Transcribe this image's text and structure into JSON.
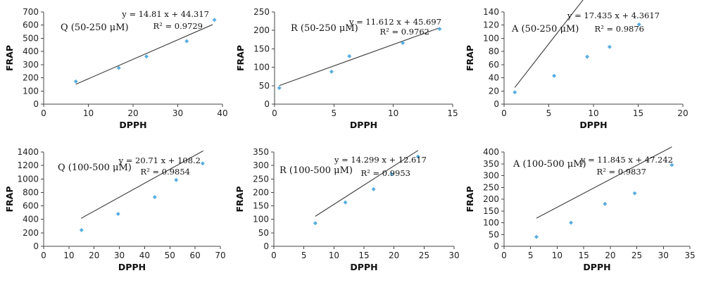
{
  "chart_data": [
    {
      "type": "scatter",
      "label": "Q (50-250 μM)",
      "xlabel": "DPPH",
      "ylabel": "FRAP",
      "xlim": [
        0,
        40
      ],
      "ylim": [
        0,
        700
      ],
      "xticks": [
        0,
        10,
        20,
        30,
        40
      ],
      "yticks": [
        0,
        100,
        200,
        300,
        400,
        500,
        600,
        700
      ],
      "x": [
        7.2,
        16.8,
        23.0,
        32.0,
        38.2
      ],
      "y": [
        172,
        275,
        362,
        478,
        640
      ],
      "trendline": {
        "slope": 14.81,
        "intercept": 44.317,
        "x_range": [
          7.2,
          37.8
        ]
      },
      "equation": "y = 14.81 x + 44.317",
      "r2": "R² = 0.9729"
    },
    {
      "type": "scatter",
      "label": "R (50-250 μM)",
      "xlabel": "DPPH",
      "ylabel": "FRAP",
      "xlim": [
        0,
        15
      ],
      "ylim": [
        0,
        250
      ],
      "xticks": [
        0,
        5,
        10,
        15
      ],
      "yticks": [
        0,
        50,
        100,
        150,
        200,
        250
      ],
      "x": [
        0.4,
        4.8,
        6.3,
        10.8,
        13.9
      ],
      "y": [
        44,
        88,
        130,
        166,
        204
      ],
      "trendline": {
        "slope": 11.612,
        "intercept": 45.697,
        "x_range": [
          0.4,
          13.9
        ]
      },
      "equation": "y = 11.612 x + 45.697",
      "r2": "R² = 0.9762"
    },
    {
      "type": "scatter",
      "label": "A (50-250 μM)",
      "xlabel": "DPPH",
      "ylabel": "FRAP",
      "xlim": [
        0,
        20
      ],
      "ylim": [
        0,
        140
      ],
      "xticks": [
        0,
        5,
        10,
        15,
        20
      ],
      "yticks": [
        0,
        20,
        40,
        60,
        80,
        100,
        120,
        140
      ],
      "x": [
        1.2,
        5.6,
        9.3,
        11.8,
        15.1
      ],
      "y": [
        18,
        43,
        72,
        87,
        121
      ],
      "trendline": {
        "slope": 17.435,
        "intercept": 4.3617,
        "x_range": [
          1.2,
          15.1
        ]
      },
      "equation": "y = 17.435 x + 4.3617",
      "r2": "R² = 0.9876"
    },
    {
      "type": "scatter",
      "label": "Q (100-500 μM)",
      "xlabel": "DPPH",
      "ylabel": "FRAP",
      "xlim": [
        0,
        70
      ],
      "ylim": [
        0,
        1400
      ],
      "xticks": [
        0,
        10,
        20,
        30,
        40,
        50,
        60,
        70
      ],
      "yticks": [
        0,
        200,
        400,
        600,
        800,
        1000,
        1200,
        1400
      ],
      "x": [
        15.0,
        29.5,
        44.0,
        52.5,
        63.0
      ],
      "y": [
        240,
        480,
        730,
        985,
        1230
      ],
      "trendline": {
        "slope": 20.71,
        "intercept": 108.2,
        "x_range": [
          14.8,
          63.2
        ]
      },
      "equation": "y = 20.71 x + 108.2",
      "r2": "R² = 0.9854"
    },
    {
      "type": "scatter",
      "label": "R (100-500 μM)",
      "xlabel": "DPPH",
      "ylabel": "FRAP",
      "xlim": [
        0,
        30
      ],
      "ylim": [
        0,
        350
      ],
      "xticks": [
        0,
        5,
        10,
        15,
        20,
        25,
        30
      ],
      "yticks": [
        0,
        50,
        100,
        150,
        200,
        250,
        300,
        350
      ],
      "x": [
        6.9,
        11.9,
        16.6,
        19.6,
        24.0
      ],
      "y": [
        86,
        163,
        212,
        268,
        333
      ],
      "trendline": {
        "slope": 14.299,
        "intercept": 12.617,
        "x_range": [
          6.9,
          24.0
        ]
      },
      "equation": "y = 14.299 x + 12.617",
      "r2": "R² = 0.9953"
    },
    {
      "type": "scatter",
      "label": "A (100-500 μM)",
      "xlabel": "DPPH",
      "ylabel": "FRAP",
      "xlim": [
        0,
        35
      ],
      "ylim": [
        0,
        400
      ],
      "xticks": [
        0,
        5,
        10,
        15,
        20,
        25,
        30,
        35
      ],
      "yticks": [
        0,
        50,
        100,
        150,
        200,
        250,
        300,
        350,
        400
      ],
      "x": [
        6.1,
        12.6,
        19.0,
        24.6,
        31.6
      ],
      "y": [
        40,
        100,
        180,
        225,
        345
      ],
      "trendline": {
        "slope": 11.845,
        "intercept": 47.242,
        "x_range": [
          6.1,
          31.6
        ]
      },
      "equation": "y = 11.845 x + 47.242",
      "r2": "R² = 0.9837"
    }
  ]
}
